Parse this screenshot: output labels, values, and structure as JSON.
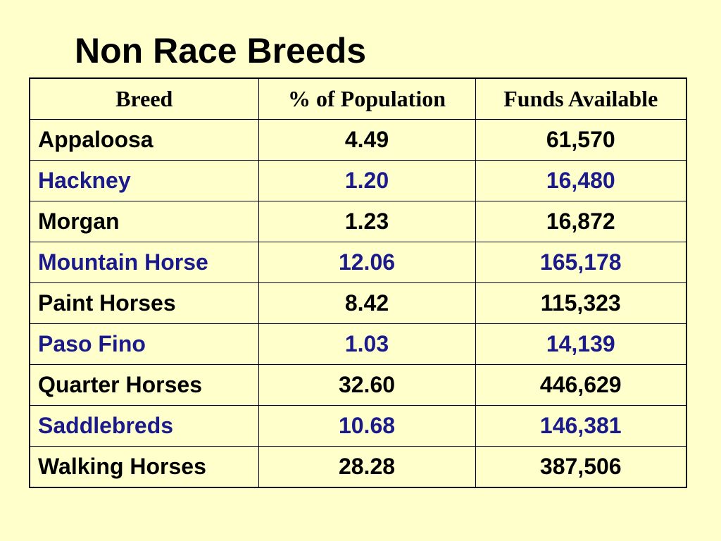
{
  "title": "Non Race Breeds",
  "table": {
    "headers": [
      "Breed",
      "% of Population",
      "Funds Available"
    ],
    "rows": [
      {
        "breed": "Appaloosa",
        "percent": "4.49",
        "funds": "61,570",
        "color": "#000000"
      },
      {
        "breed": "Hackney",
        "percent": "1.20",
        "funds": "16,480",
        "color": "#1a1a8c"
      },
      {
        "breed": "Morgan",
        "percent": "1.23",
        "funds": "16,872",
        "color": "#000000"
      },
      {
        "breed": "Mountain Horse",
        "percent": "12.06",
        "funds": "165,178",
        "color": "#1a1a8c"
      },
      {
        "breed": "Paint Horses",
        "percent": "8.42",
        "funds": "115,323",
        "color": "#000000"
      },
      {
        "breed": "Paso Fino",
        "percent": "1.03",
        "funds": "14,139",
        "color": "#1a1a8c"
      },
      {
        "breed": "Quarter Horses",
        "percent": "32.60",
        "funds": "446,629",
        "color": "#000000"
      },
      {
        "breed": "Saddlebreds",
        "percent": "10.68",
        "funds": "146,381",
        "color": "#1a1a8c"
      },
      {
        "breed": "Walking Horses",
        "percent": "28.28",
        "funds": "387,506",
        "color": "#000000"
      }
    ]
  },
  "colors": {
    "background": "#ffffcc",
    "text_primary": "#000000",
    "text_alternate": "#1a1a8c"
  }
}
